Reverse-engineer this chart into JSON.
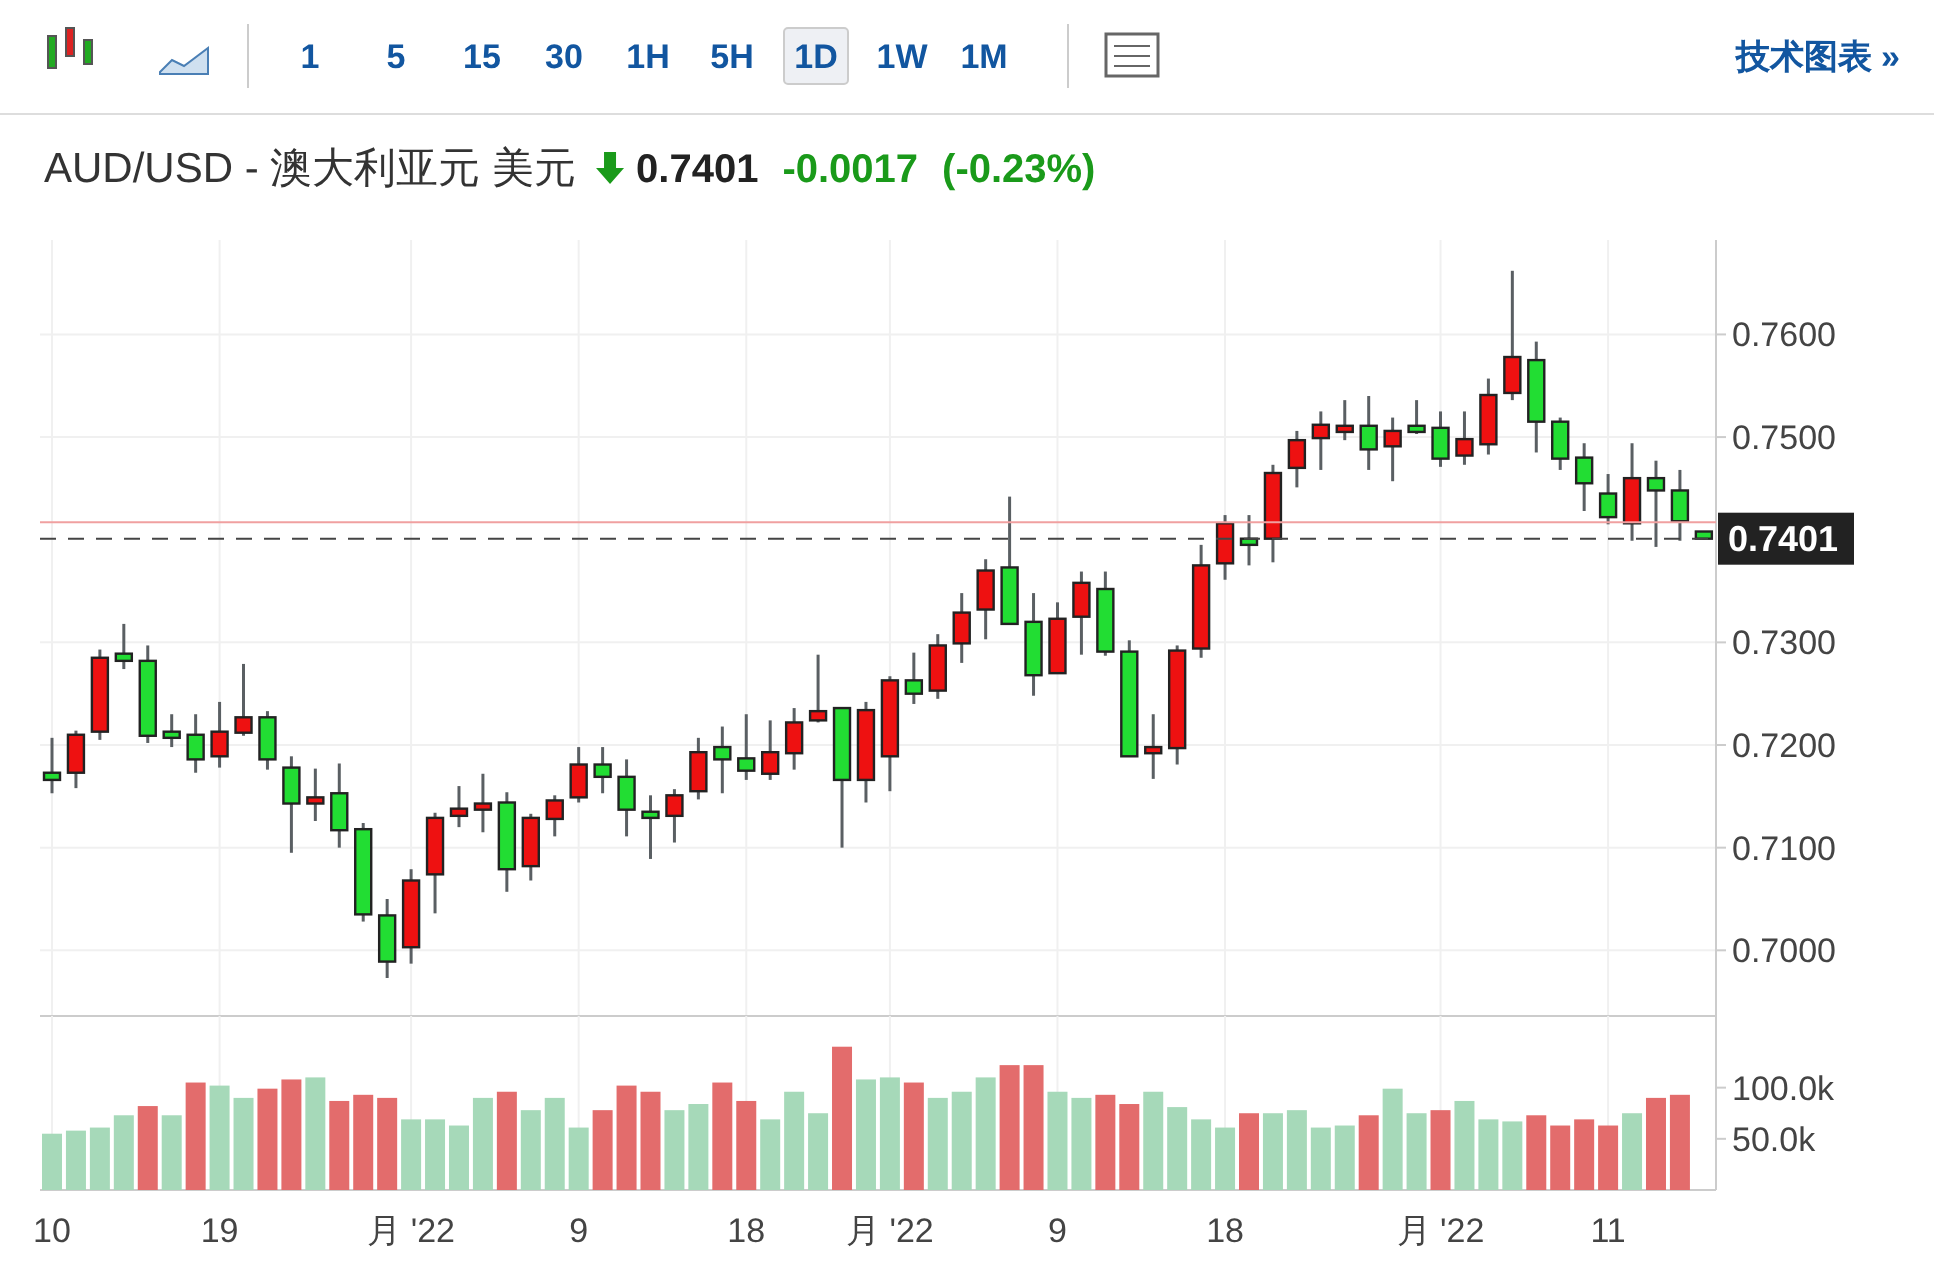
{
  "chart_data": [
    {
      "type": "candlestick",
      "title": "AUD/USD - 澳大利亚元 美元",
      "annotations": [
        "0.7401",
        "-0.0017",
        "(-0.23%)",
        "15",
        "30",
        "1H",
        "5H",
        "1D",
        "1W",
        "1M",
        "1",
        "5",
        "技术图表 »"
      ],
      "categories": [
        null,
        null,
        null,
        null,
        null,
        null,
        null,
        null,
        null,
        null,
        null,
        null,
        null,
        null,
        null,
        null,
        null,
        null,
        null,
        null,
        null,
        null,
        null,
        null,
        null,
        null,
        null,
        null,
        null,
        null,
        null,
        null,
        null,
        null,
        null,
        null,
        null,
        null,
        null,
        null,
        null,
        null,
        null,
        null,
        null,
        null,
        null,
        null,
        null,
        null,
        null,
        null,
        null,
        null,
        null,
        null,
        null,
        null,
        null,
        null,
        null,
        null,
        null,
        null,
        null,
        null,
        null,
        null,
        null,
        null
      ],
      "ohlc": [
        [
          0.7173,
          0.7207,
          0.7153,
          0.7166
        ],
        [
          0.7173,
          0.7214,
          0.7158,
          0.721
        ],
        [
          0.7213,
          0.7293,
          0.7205,
          0.7285
        ],
        [
          0.7289,
          0.7318,
          0.7274,
          0.7282
        ],
        [
          0.7282,
          0.7297,
          0.7202,
          0.7209
        ],
        [
          0.7213,
          0.723,
          0.7198,
          0.7207
        ],
        [
          0.721,
          0.723,
          0.7173,
          0.7186
        ],
        [
          0.7189,
          0.7242,
          0.7178,
          0.7213
        ],
        [
          0.7212,
          0.7279,
          0.7209,
          0.7227
        ],
        [
          0.7227,
          0.7233,
          0.7176,
          0.7186
        ],
        [
          0.7178,
          0.7189,
          0.7095,
          0.7143
        ],
        [
          0.7143,
          0.7177,
          0.7126,
          0.7149
        ],
        [
          0.7153,
          0.7182,
          0.71,
          0.7117
        ],
        [
          0.7118,
          0.7124,
          0.7028,
          0.7035
        ],
        [
          0.7034,
          0.705,
          0.6973,
          0.6989
        ],
        [
          0.7003,
          0.7079,
          0.6987,
          0.7068
        ],
        [
          0.7074,
          0.7134,
          0.7036,
          0.7129
        ],
        [
          0.7131,
          0.716,
          0.712,
          0.7138
        ],
        [
          0.7137,
          0.7172,
          0.7115,
          0.7143
        ],
        [
          0.7144,
          0.7154,
          0.7057,
          0.7079
        ],
        [
          0.7082,
          0.7133,
          0.7068,
          0.7129
        ],
        [
          0.7128,
          0.7151,
          0.7111,
          0.7146
        ],
        [
          0.7149,
          0.7198,
          0.7144,
          0.7181
        ],
        [
          0.7181,
          0.7198,
          0.7153,
          0.7169
        ],
        [
          0.7169,
          0.7186,
          0.7111,
          0.7137
        ],
        [
          0.7135,
          0.7151,
          0.7089,
          0.7129
        ],
        [
          0.7131,
          0.7157,
          0.7105,
          0.7151
        ],
        [
          0.7155,
          0.7207,
          0.7147,
          0.7193
        ],
        [
          0.7198,
          0.7218,
          0.7153,
          0.7186
        ],
        [
          0.7187,
          0.723,
          0.7166,
          0.7175
        ],
        [
          0.7172,
          0.7224,
          0.7166,
          0.7193
        ],
        [
          0.7192,
          0.7236,
          0.7176,
          0.7222
        ],
        [
          0.7224,
          0.7288,
          0.7222,
          0.7233
        ],
        [
          0.7236,
          0.7236,
          0.71,
          0.7166
        ],
        [
          0.7166,
          0.7242,
          0.7144,
          0.7234
        ],
        [
          0.7189,
          0.7267,
          0.7155,
          0.7263
        ],
        [
          0.7263,
          0.729,
          0.724,
          0.725
        ],
        [
          0.7253,
          0.7308,
          0.7245,
          0.7297
        ],
        [
          0.7299,
          0.7348,
          0.728,
          0.7329
        ],
        [
          0.7332,
          0.7381,
          0.7303,
          0.737
        ],
        [
          0.7373,
          0.7442,
          0.7318,
          0.7318
        ],
        [
          0.732,
          0.7348,
          0.7248,
          0.7268
        ],
        [
          0.727,
          0.7339,
          0.727,
          0.7323
        ],
        [
          0.7325,
          0.7369,
          0.7288,
          0.7358
        ],
        [
          0.7352,
          0.7369,
          0.7287,
          0.7291
        ],
        [
          0.7291,
          0.7302,
          0.7189,
          0.7189
        ],
        [
          0.7192,
          0.723,
          0.7167,
          0.7198
        ],
        [
          0.7197,
          0.7297,
          0.7181,
          0.7292
        ],
        [
          0.7294,
          0.7395,
          0.7285,
          0.7375
        ],
        [
          0.7377,
          0.7424,
          0.7361,
          0.7416
        ],
        [
          0.7401,
          0.7424,
          0.7375,
          0.7395
        ],
        [
          0.7401,
          0.7473,
          0.7378,
          0.7465
        ],
        [
          0.747,
          0.7506,
          0.7451,
          0.7497
        ],
        [
          0.7499,
          0.7525,
          0.7468,
          0.7512
        ],
        [
          0.7505,
          0.7536,
          0.7497,
          0.7511
        ],
        [
          0.7511,
          0.754,
          0.7468,
          0.7488
        ],
        [
          0.7491,
          0.7519,
          0.7457,
          0.7506
        ],
        [
          0.7511,
          0.7536,
          0.7503,
          0.7505
        ],
        [
          0.7509,
          0.7525,
          0.7471,
          0.7479
        ],
        [
          0.7482,
          0.7525,
          0.7473,
          0.7498
        ],
        [
          0.7493,
          0.7557,
          0.7483,
          0.7541
        ],
        [
          0.7543,
          0.7662,
          0.7536,
          0.7578
        ],
        [
          0.7575,
          0.7593,
          0.7485,
          0.7515
        ],
        [
          0.7515,
          0.7519,
          0.7468,
          0.7479
        ],
        [
          0.748,
          0.7494,
          0.7428,
          0.7455
        ],
        [
          0.7445,
          0.7464,
          0.7415,
          0.7422
        ],
        [
          0.7416,
          0.7494,
          0.7399,
          0.746
        ],
        [
          0.746,
          0.7477,
          0.7393,
          0.7448
        ],
        [
          0.7448,
          0.7468,
          0.7399,
          0.7418
        ],
        [
          0.7408,
          0.7408,
          0.74,
          0.7401
        ]
      ],
      "ylim": [
        0.6936,
        0.7692
      ],
      "yticks": [
        {
          "value": 0.7,
          "label": "0.7000"
        },
        {
          "value": 0.71,
          "label": "0.7100"
        },
        {
          "value": 0.72,
          "label": "0.7200"
        },
        {
          "value": 0.73,
          "label": "0.7300"
        },
        {
          "value": 0.75,
          "label": "0.7500"
        },
        {
          "value": 0.76,
          "label": "0.7600"
        }
      ],
      "ref_lines": [
        {
          "axis": "y",
          "value": 0.7401,
          "label": "0.7401",
          "color": "#444444",
          "line_style": "dashed"
        },
        {
          "axis": "y",
          "value": 0.7417,
          "color": "#f0a0a0",
          "line_style": "solid"
        }
      ],
      "grid": true,
      "tick_labels": "y"
    },
    {
      "type": "bar",
      "categories": [
        "10",
        null,
        null,
        null,
        null,
        null,
        null,
        "19",
        null,
        null,
        null,
        null,
        null,
        null,
        null,
        "月 '22",
        null,
        null,
        null,
        null,
        null,
        null,
        "9",
        null,
        null,
        null,
        null,
        null,
        null,
        "18",
        null,
        null,
        null,
        null,
        null,
        "月 '22",
        null,
        null,
        null,
        null,
        null,
        null,
        "9",
        null,
        null,
        null,
        null,
        null,
        null,
        "18",
        null,
        null,
        null,
        null,
        null,
        null,
        null,
        null,
        "月 '22",
        null,
        null,
        null,
        null,
        null,
        null,
        "11",
        null,
        null,
        null,
        null
      ],
      "values": [
        55000,
        58000,
        61000,
        73000,
        82000,
        73000,
        105000,
        102000,
        90000,
        99000,
        108000,
        110000,
        87000,
        93000,
        90000,
        69000,
        69000,
        63000,
        90000,
        96000,
        78000,
        90000,
        61000,
        78000,
        102000,
        96000,
        78000,
        84000,
        105000,
        87000,
        69000,
        96000,
        75000,
        140000,
        108000,
        110000,
        105000,
        90000,
        96000,
        110000,
        122000,
        122000,
        96000,
        90000,
        93000,
        84000,
        96000,
        81000,
        69000,
        61000,
        75000,
        75000,
        78000,
        61000,
        63000,
        73000,
        99000,
        75000,
        78000,
        87000,
        69000,
        67000,
        73000,
        63000,
        69000,
        63000,
        75000,
        90000,
        93000,
        null
      ],
      "colors": [
        "#a6d9b9",
        "#a6d9b9",
        "#a6d9b9",
        "#a6d9b9",
        "#e36c6c",
        "#a6d9b9",
        "#e36c6c",
        "#a6d9b9",
        "#a6d9b9",
        "#e36c6c",
        "#e36c6c",
        "#a6d9b9",
        "#e36c6c",
        "#e36c6c",
        "#e36c6c",
        "#a6d9b9",
        "#a6d9b9",
        "#a6d9b9",
        "#a6d9b9",
        "#e36c6c",
        "#a6d9b9",
        "#a6d9b9",
        "#a6d9b9",
        "#e36c6c",
        "#e36c6c",
        "#e36c6c",
        "#a6d9b9",
        "#a6d9b9",
        "#e36c6c",
        "#e36c6c",
        "#a6d9b9",
        "#a6d9b9",
        "#a6d9b9",
        "#e36c6c",
        "#a6d9b9",
        "#a6d9b9",
        "#e36c6c",
        "#a6d9b9",
        "#a6d9b9",
        "#a6d9b9",
        "#e36c6c",
        "#e36c6c",
        "#a6d9b9",
        "#a6d9b9",
        "#e36c6c",
        "#e36c6c",
        "#a6d9b9",
        "#a6d9b9",
        "#a6d9b9",
        "#a6d9b9",
        "#e36c6c",
        "#a6d9b9",
        "#a6d9b9",
        "#a6d9b9",
        "#a6d9b9",
        "#e36c6c",
        "#a6d9b9",
        "#a6d9b9",
        "#e36c6c",
        "#a6d9b9",
        "#a6d9b9",
        "#a6d9b9",
        "#e36c6c",
        "#e36c6c",
        "#e36c6c",
        "#e36c6c",
        "#a6d9b9",
        "#e36c6c",
        "#e36c6c",
        null
      ],
      "ylim": [
        0,
        170000
      ],
      "yticks": [
        {
          "value": 50000,
          "label": "50.0k"
        },
        {
          "value": 100000,
          "label": "100.0k"
        }
      ],
      "grid": "x"
    }
  ]
}
